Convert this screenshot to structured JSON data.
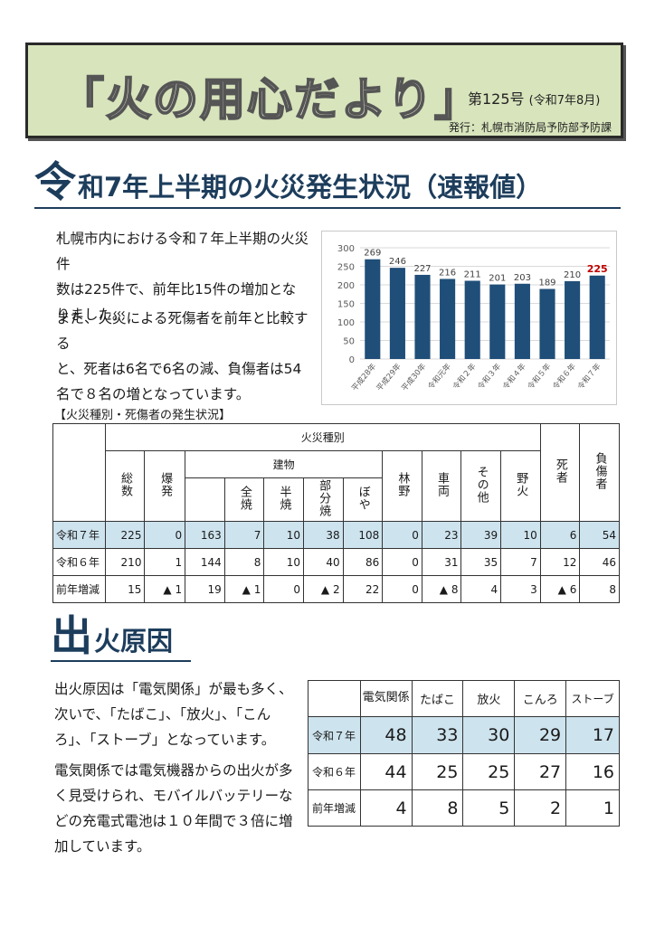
{
  "banner": {
    "title": "「火の用心だより」",
    "issue": "第125号",
    "issue_date": "(令和7年8月)",
    "publisher": "発行：札幌市消防局予防部予防課"
  },
  "section1": {
    "big_char": "令",
    "rest": "和7年上半期の火災発生状況（速報値）",
    "para1": [
      "札幌市内における令和７年上半期の火災件",
      "数は225件で、前年比15件の増加とな",
      "りました。"
    ],
    "para2": [
      "また、火災による死傷者を前年と比較する",
      "と、死者は6名で6名の減、負傷者は54",
      "名で８名の増となっています。"
    ]
  },
  "chart_data": {
    "type": "bar",
    "categories": [
      "平成28年",
      "平成29年",
      "平成30年",
      "令和元年",
      "令和２年",
      "令和３年",
      "令和４年",
      "令和５年",
      "令和６年",
      "令和７年"
    ],
    "values": [
      269,
      246,
      227,
      216,
      211,
      201,
      203,
      189,
      210,
      225
    ],
    "ylim": [
      0,
      300
    ],
    "yticks": [
      0,
      50,
      100,
      150,
      200,
      250,
      300
    ],
    "bar_color": "#1f4e79",
    "highlight_label_color": "#c00000",
    "grid": true
  },
  "table1": {
    "caption": "【火災種別・死傷者の発生状況】",
    "headers": {
      "group": "火災種別",
      "building": "建物",
      "total": "総数",
      "explosion": "爆発",
      "full": "全焼",
      "half": "半焼",
      "partial": "部分焼",
      "small": "ぼや",
      "forest": "林野",
      "vehicle": "車両",
      "other": "その他",
      "field": "野火",
      "dead": "死者",
      "injured": "負傷者"
    },
    "rows": [
      {
        "label": "令和７年",
        "cells": [
          "225",
          "0",
          "163",
          "7",
          "10",
          "38",
          "108",
          "0",
          "23",
          "39",
          "10",
          "6",
          "54"
        ]
      },
      {
        "label": "令和６年",
        "cells": [
          "210",
          "1",
          "144",
          "8",
          "10",
          "40",
          "86",
          "0",
          "31",
          "35",
          "7",
          "12",
          "46"
        ]
      },
      {
        "label": "前年増減",
        "cells": [
          "15",
          "▲ 1",
          "19",
          "▲ 1",
          "0",
          "▲ 2",
          "22",
          "0",
          "▲ 8",
          "4",
          "3",
          "▲ 6",
          "8"
        ]
      }
    ]
  },
  "section2": {
    "big_char": "出",
    "rest": "火原因",
    "para1": [
      "出火原因は「電気関係」が最も多く、",
      "次いで、「たばこ」、「放火」、「こん",
      "ろ」、「ストーブ」となっています。"
    ],
    "para2": [
      "電気関係では電気機器からの出火が多",
      "く見受けられ、モバイルバッテリーな",
      "どの充電式電池は１０年間で３倍に増",
      "加しています。"
    ]
  },
  "table2": {
    "headers": [
      "電気関係",
      "たばこ",
      "放火",
      "こんろ",
      "ストーブ"
    ],
    "rows": [
      {
        "label": "令和７年",
        "cells": [
          "48",
          "33",
          "30",
          "29",
          "17"
        ]
      },
      {
        "label": "令和６年",
        "cells": [
          "44",
          "25",
          "25",
          "27",
          "16"
        ]
      },
      {
        "label": "前年増減",
        "cells": [
          "4",
          "8",
          "5",
          "2",
          "1"
        ]
      }
    ]
  }
}
